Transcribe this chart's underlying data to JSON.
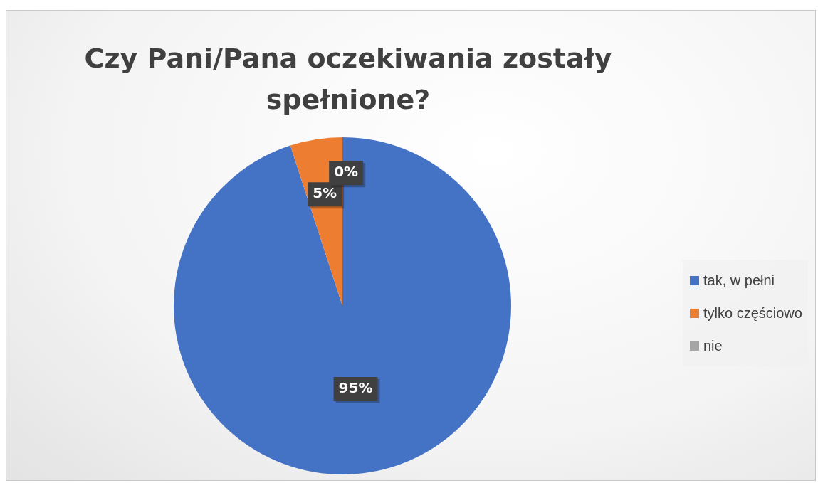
{
  "chart_data": {
    "type": "pie",
    "title": "Czy Pani/Pana oczekiwania zostały spełnione?",
    "categories": [
      "tak, w pełni",
      "tylko częściowo",
      "nie"
    ],
    "values": [
      95,
      5,
      0
    ],
    "colors": [
      "#4472c4",
      "#ed7d31",
      "#a5a5a5"
    ],
    "value_labels": [
      "95%",
      "5%",
      "0%"
    ],
    "legend": "right"
  }
}
